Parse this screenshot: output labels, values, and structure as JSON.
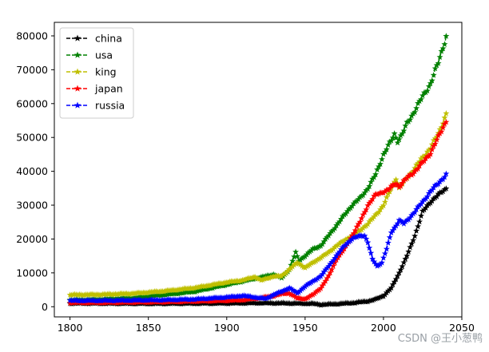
{
  "chart_data": {
    "type": "line",
    "title": "",
    "xlabel": "",
    "ylabel": "",
    "xlim": [
      1790,
      2050
    ],
    "ylim": [
      -3000,
      84000
    ],
    "xticks": [
      1800,
      1850,
      1900,
      1950,
      2000,
      2050
    ],
    "yticks": [
      0,
      10000,
      20000,
      30000,
      40000,
      50000,
      60000,
      70000,
      80000
    ],
    "xtick_labels": [
      "1800",
      "1850",
      "1900",
      "1950",
      "2000",
      "2050"
    ],
    "ytick_labels": [
      "0",
      "10000",
      "20000",
      "30000",
      "40000",
      "50000",
      "60000",
      "70000",
      "80000"
    ],
    "legend_position": "upper-left",
    "marker": "star",
    "linestyle": "dashed",
    "series": [
      {
        "name": "china",
        "color": "#000000",
        "points": [
          [
            1800,
            1000
          ],
          [
            1850,
            900
          ],
          [
            1900,
            1000
          ],
          [
            1920,
            1100
          ],
          [
            1940,
            1000
          ],
          [
            1955,
            900
          ],
          [
            1960,
            600
          ],
          [
            1970,
            800
          ],
          [
            1980,
            1100
          ],
          [
            1990,
            1600
          ],
          [
            1995,
            2200
          ],
          [
            2000,
            3200
          ],
          [
            2005,
            5500
          ],
          [
            2010,
            10000
          ],
          [
            2015,
            15000
          ],
          [
            2020,
            21000
          ],
          [
            2025,
            28000
          ],
          [
            2030,
            31000
          ],
          [
            2035,
            33000
          ],
          [
            2040,
            35000
          ]
        ]
      },
      {
        "name": "usa",
        "color": "#008000",
        "points": [
          [
            1800,
            2000
          ],
          [
            1820,
            2200
          ],
          [
            1840,
            2600
          ],
          [
            1860,
            3500
          ],
          [
            1880,
            4500
          ],
          [
            1900,
            6500
          ],
          [
            1910,
            7500
          ],
          [
            1920,
            8500
          ],
          [
            1930,
            9500
          ],
          [
            1935,
            8500
          ],
          [
            1940,
            11000
          ],
          [
            1944,
            16000
          ],
          [
            1946,
            13500
          ],
          [
            1950,
            15000
          ],
          [
            1955,
            17000
          ],
          [
            1960,
            18000
          ],
          [
            1965,
            21000
          ],
          [
            1970,
            24000
          ],
          [
            1975,
            27000
          ],
          [
            1980,
            30000
          ],
          [
            1985,
            32000
          ],
          [
            1990,
            35000
          ],
          [
            1995,
            39000
          ],
          [
            2000,
            45000
          ],
          [
            2005,
            49000
          ],
          [
            2007,
            51000
          ],
          [
            2009,
            49000
          ],
          [
            2012,
            51000
          ],
          [
            2015,
            54000
          ],
          [
            2020,
            58000
          ],
          [
            2025,
            62000
          ],
          [
            2030,
            66000
          ],
          [
            2035,
            72000
          ],
          [
            2040,
            80000
          ]
        ]
      },
      {
        "name": "king",
        "color": "#bfbf00",
        "points": [
          [
            1800,
            3500
          ],
          [
            1820,
            3600
          ],
          [
            1840,
            3900
          ],
          [
            1860,
            4600
          ],
          [
            1880,
            5600
          ],
          [
            1900,
            7200
          ],
          [
            1910,
            7800
          ],
          [
            1918,
            8800
          ],
          [
            1922,
            7800
          ],
          [
            1930,
            9000
          ],
          [
            1935,
            9000
          ],
          [
            1940,
            11000
          ],
          [
            1945,
            13000
          ],
          [
            1950,
            11500
          ],
          [
            1955,
            13000
          ],
          [
            1960,
            14500
          ],
          [
            1965,
            16000
          ],
          [
            1970,
            18000
          ],
          [
            1975,
            19500
          ],
          [
            1980,
            21000
          ],
          [
            1985,
            22500
          ],
          [
            1990,
            24500
          ],
          [
            1995,
            27000
          ],
          [
            2000,
            30000
          ],
          [
            2005,
            35000
          ],
          [
            2008,
            38000
          ],
          [
            2010,
            35000
          ],
          [
            2015,
            38000
          ],
          [
            2020,
            41000
          ],
          [
            2025,
            44000
          ],
          [
            2030,
            47000
          ],
          [
            2035,
            51000
          ],
          [
            2040,
            57000
          ]
        ]
      },
      {
        "name": "japan",
        "color": "#ff0000",
        "points": [
          [
            1800,
            1200
          ],
          [
            1820,
            1200
          ],
          [
            1840,
            1300
          ],
          [
            1860,
            1400
          ],
          [
            1880,
            1600
          ],
          [
            1900,
            1800
          ],
          [
            1910,
            2000
          ],
          [
            1920,
            2500
          ],
          [
            1930,
            3200
          ],
          [
            1935,
            3800
          ],
          [
            1940,
            4000
          ],
          [
            1945,
            2500
          ],
          [
            1950,
            2300
          ],
          [
            1955,
            3500
          ],
          [
            1960,
            5500
          ],
          [
            1965,
            9000
          ],
          [
            1970,
            14000
          ],
          [
            1975,
            17000
          ],
          [
            1980,
            21000
          ],
          [
            1985,
            25000
          ],
          [
            1990,
            30000
          ],
          [
            1995,
            33000
          ],
          [
            2000,
            34000
          ],
          [
            2003,
            34500
          ],
          [
            2008,
            36500
          ],
          [
            2010,
            35500
          ],
          [
            2015,
            38000
          ],
          [
            2020,
            40000
          ],
          [
            2025,
            42500
          ],
          [
            2030,
            45500
          ],
          [
            2035,
            50000
          ],
          [
            2040,
            55000
          ]
        ]
      },
      {
        "name": "russia",
        "color": "#0000ff",
        "points": [
          [
            1800,
            1800
          ],
          [
            1820,
            1800
          ],
          [
            1840,
            1900
          ],
          [
            1860,
            2000
          ],
          [
            1880,
            2200
          ],
          [
            1900,
            2800
          ],
          [
            1910,
            3200
          ],
          [
            1915,
            3000
          ],
          [
            1920,
            2600
          ],
          [
            1925,
            2400
          ],
          [
            1930,
            3500
          ],
          [
            1935,
            4500
          ],
          [
            1940,
            5500
          ],
          [
            1945,
            4000
          ],
          [
            1950,
            6000
          ],
          [
            1955,
            7500
          ],
          [
            1960,
            9000
          ],
          [
            1965,
            12000
          ],
          [
            1970,
            15000
          ],
          [
            1975,
            18000
          ],
          [
            1980,
            20000
          ],
          [
            1985,
            21000
          ],
          [
            1988,
            21000
          ],
          [
            1990,
            19000
          ],
          [
            1993,
            14000
          ],
          [
            1996,
            12000
          ],
          [
            1999,
            13000
          ],
          [
            2002,
            17000
          ],
          [
            2005,
            22000
          ],
          [
            2008,
            24000
          ],
          [
            2010,
            25500
          ],
          [
            2013,
            24500
          ],
          [
            2016,
            26000
          ],
          [
            2020,
            28000
          ],
          [
            2025,
            31000
          ],
          [
            2030,
            34000
          ],
          [
            2035,
            36500
          ],
          [
            2040,
            39000
          ]
        ]
      }
    ]
  },
  "watermark": "CSDN @王小葱鸭"
}
